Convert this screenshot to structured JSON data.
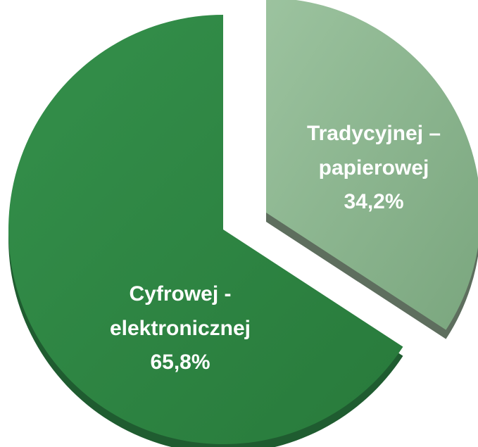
{
  "chart_data": {
    "type": "pie",
    "title": "",
    "categories": [
      "Tradycyjnej – papierowej",
      "Cyfrowej - elektronicznej"
    ],
    "values": [
      34.2,
      65.8
    ],
    "labels": [
      [
        "Tradycyjnej –",
        "papierowej",
        "34,2%"
      ],
      [
        "Cyfrowej -",
        "elektronicznej",
        "65,8%"
      ]
    ],
    "colors": [
      "#86b28a",
      "#2e8544"
    ],
    "side_colors": [
      "#5e6e5e",
      "#1f5c30"
    ],
    "exploded_slice": 0,
    "legend": "none"
  }
}
